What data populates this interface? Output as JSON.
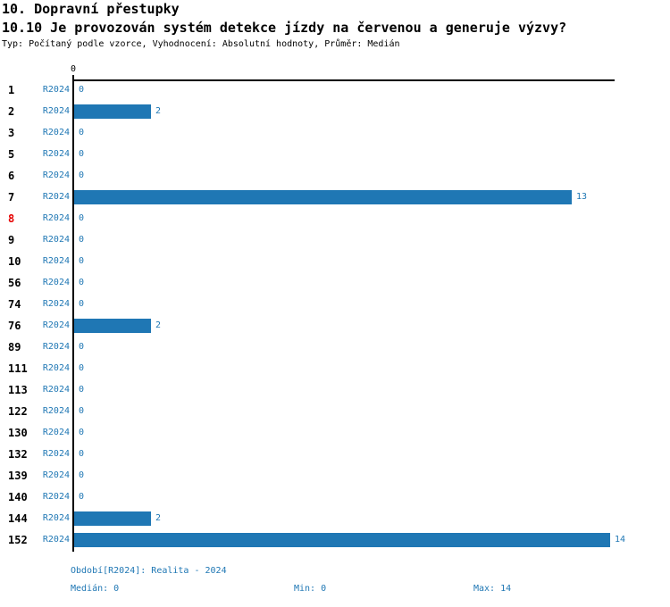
{
  "header": {
    "title": "10. Dopravní přestupky",
    "subtitle": "10.10 Je provozován systém detekce jízdy na červenou a generuje výzvy?",
    "meta": "Typ: Počítaný podle vzorce, Vyhodnocení: Absolutní hodnoty, Průměr: Medián"
  },
  "chart_data": {
    "type": "bar",
    "orientation": "horizontal",
    "categories": [
      "1",
      "2",
      "3",
      "5",
      "6",
      "7",
      "8",
      "9",
      "10",
      "56",
      "74",
      "76",
      "89",
      "111",
      "113",
      "122",
      "130",
      "132",
      "139",
      "140",
      "144",
      "152"
    ],
    "series": [
      {
        "name": "R2024",
        "values": [
          0,
          2,
          0,
          0,
          0,
          13,
          0,
          0,
          0,
          0,
          0,
          2,
          0,
          0,
          0,
          0,
          0,
          0,
          0,
          0,
          2,
          14
        ]
      }
    ],
    "highlighted_categories": [
      "8"
    ],
    "axis_top_tick_label": "0",
    "xlim": [
      0,
      14.1
    ],
    "value_labels_shown": true,
    "grid": false,
    "bar_color": "#1f77b4",
    "label_color": "#1f77b4",
    "highlight_color": "#e60000",
    "axis_color": "#000000",
    "stats": {
      "median": 0,
      "min": 0,
      "max": 14,
      "period": "Realita - 2024"
    }
  },
  "footer": {
    "period_label": "Období[R2024]: Realita - 2024",
    "median_label": "Medián: 0",
    "min_label": "Min: 0",
    "max_label": "Max: 14"
  }
}
